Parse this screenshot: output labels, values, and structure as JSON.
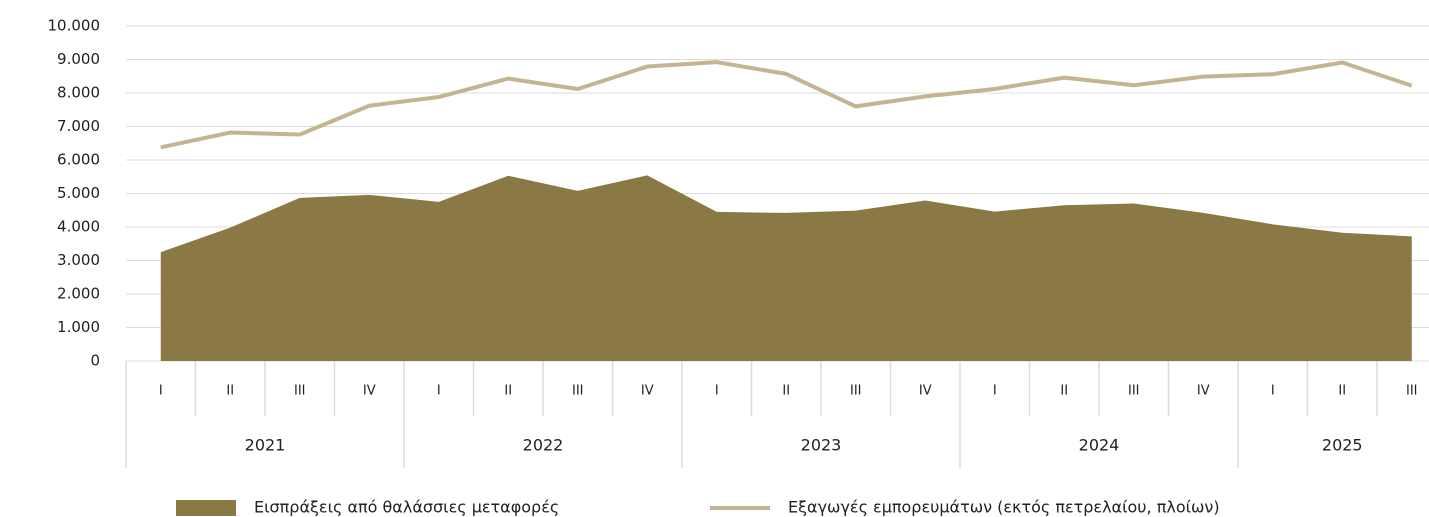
{
  "chart_data": {
    "type": "area_line",
    "categories": [
      "I",
      "II",
      "III",
      "IV",
      "I",
      "II",
      "III",
      "IV",
      "I",
      "II",
      "III",
      "IV",
      "I",
      "II",
      "III",
      "IV",
      "I",
      "II",
      "III"
    ],
    "year_groups": [
      "2021",
      "2022",
      "2023",
      "2024",
      "2025"
    ],
    "series": [
      {
        "name": "Εισπράξεις από θαλάσσιες μεταφορές",
        "color": "#8a7845",
        "kind": "area",
        "values": [
          3250,
          3980,
          4870,
          4960,
          4750,
          5530,
          5080,
          5540,
          4450,
          4420,
          4490,
          4790,
          4460,
          4650,
          4700,
          4420,
          4080,
          3830,
          3720
        ]
      },
      {
        "name": "Εξαγωγές εμπορευμάτων (εκτός πετρελαίου, πλοίων)",
        "color": "#c2b58f",
        "kind": "line",
        "values": [
          6380,
          6820,
          6760,
          7620,
          7880,
          8430,
          8120,
          8790,
          8920,
          8570,
          7600,
          7900,
          8120,
          8460,
          8230,
          8490,
          8560,
          8910,
          8220
        ]
      }
    ],
    "ylim": [
      0,
      10000
    ],
    "yticks": [
      0,
      {
        "value": 1000,
        "label": "1.000"
      },
      {
        "value": 2000,
        "label": "2.000"
      },
      {
        "value": 3000,
        "label": "3.000"
      },
      {
        "value": 4000,
        "label": "4.000"
      },
      {
        "value": 5000,
        "label": "5.000"
      },
      {
        "value": 6000,
        "label": "6.000"
      },
      {
        "value": 7000,
        "label": "7.000"
      },
      {
        "value": 8000,
        "label": "8.000"
      },
      {
        "value": 9000,
        "label": "9.000"
      },
      {
        "value": 10000,
        "label": "10.000"
      }
    ],
    "grid": true,
    "legend": "bottom"
  }
}
